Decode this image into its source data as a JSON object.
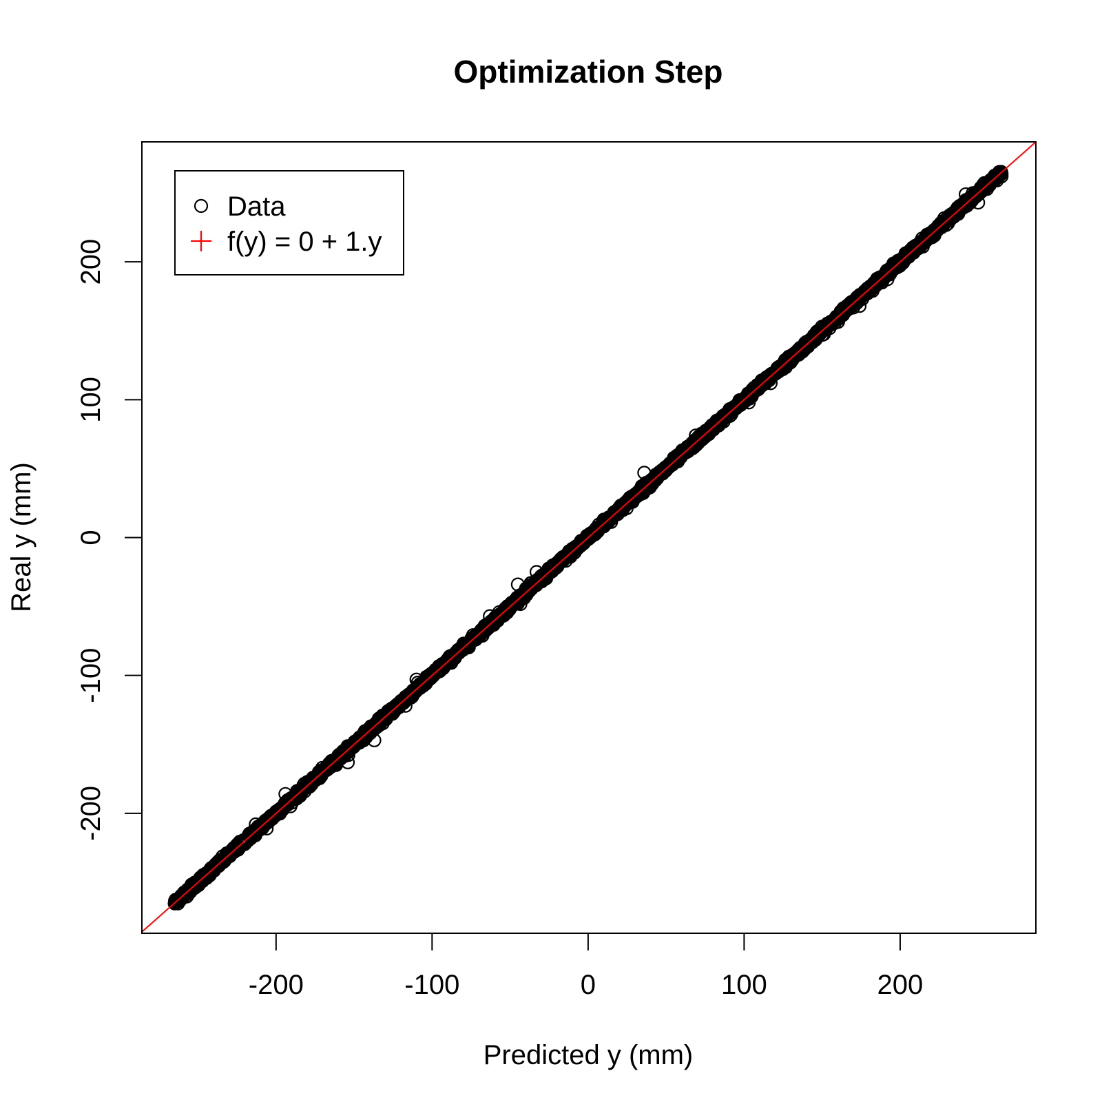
{
  "chart_data": {
    "type": "scatter",
    "title": "Optimization Step",
    "xlabel": "Predicted y (mm)",
    "ylabel": "Real y (mm)",
    "xlim": [
      -286,
      287
    ],
    "ylim": [
      -287,
      287
    ],
    "xticks": [
      -200,
      -100,
      0,
      100,
      200
    ],
    "yticks": [
      -200,
      -100,
      0,
      100,
      200
    ],
    "grid": false,
    "legend": {
      "position": "top-left",
      "entries": [
        {
          "label": "Data",
          "marker": "open-circle",
          "color": "#000000"
        },
        {
          "label": "f(y) = 0 + 1.y",
          "marker": "plus",
          "color": "#ff0000"
        }
      ]
    },
    "line": {
      "intercept": 0,
      "slope": 1,
      "color": "#ff0000"
    },
    "series": [
      {
        "name": "Data",
        "color": "#000000",
        "x_range": [
          -265,
          265
        ],
        "noise_sd": 1.2,
        "point_count": 2500,
        "outliers": [
          [
            -194,
            -186
          ],
          [
            -213,
            -208
          ],
          [
            -206,
            -211
          ],
          [
            -154,
            -163
          ],
          [
            -160,
            -158
          ],
          [
            -137,
            -147
          ],
          [
            -110,
            -103
          ],
          [
            -117,
            -122
          ],
          [
            -63,
            -57
          ],
          [
            -45,
            -34
          ],
          [
            -33,
            -25
          ],
          [
            10,
            13
          ],
          [
            36,
            47
          ],
          [
            69,
            74
          ],
          [
            103,
            98
          ],
          [
            117,
            112
          ],
          [
            150,
            147
          ],
          [
            174,
            168
          ],
          [
            242,
            249
          ],
          [
            250,
            243
          ],
          [
            262,
            259
          ],
          [
            265,
            264
          ]
        ]
      }
    ]
  }
}
